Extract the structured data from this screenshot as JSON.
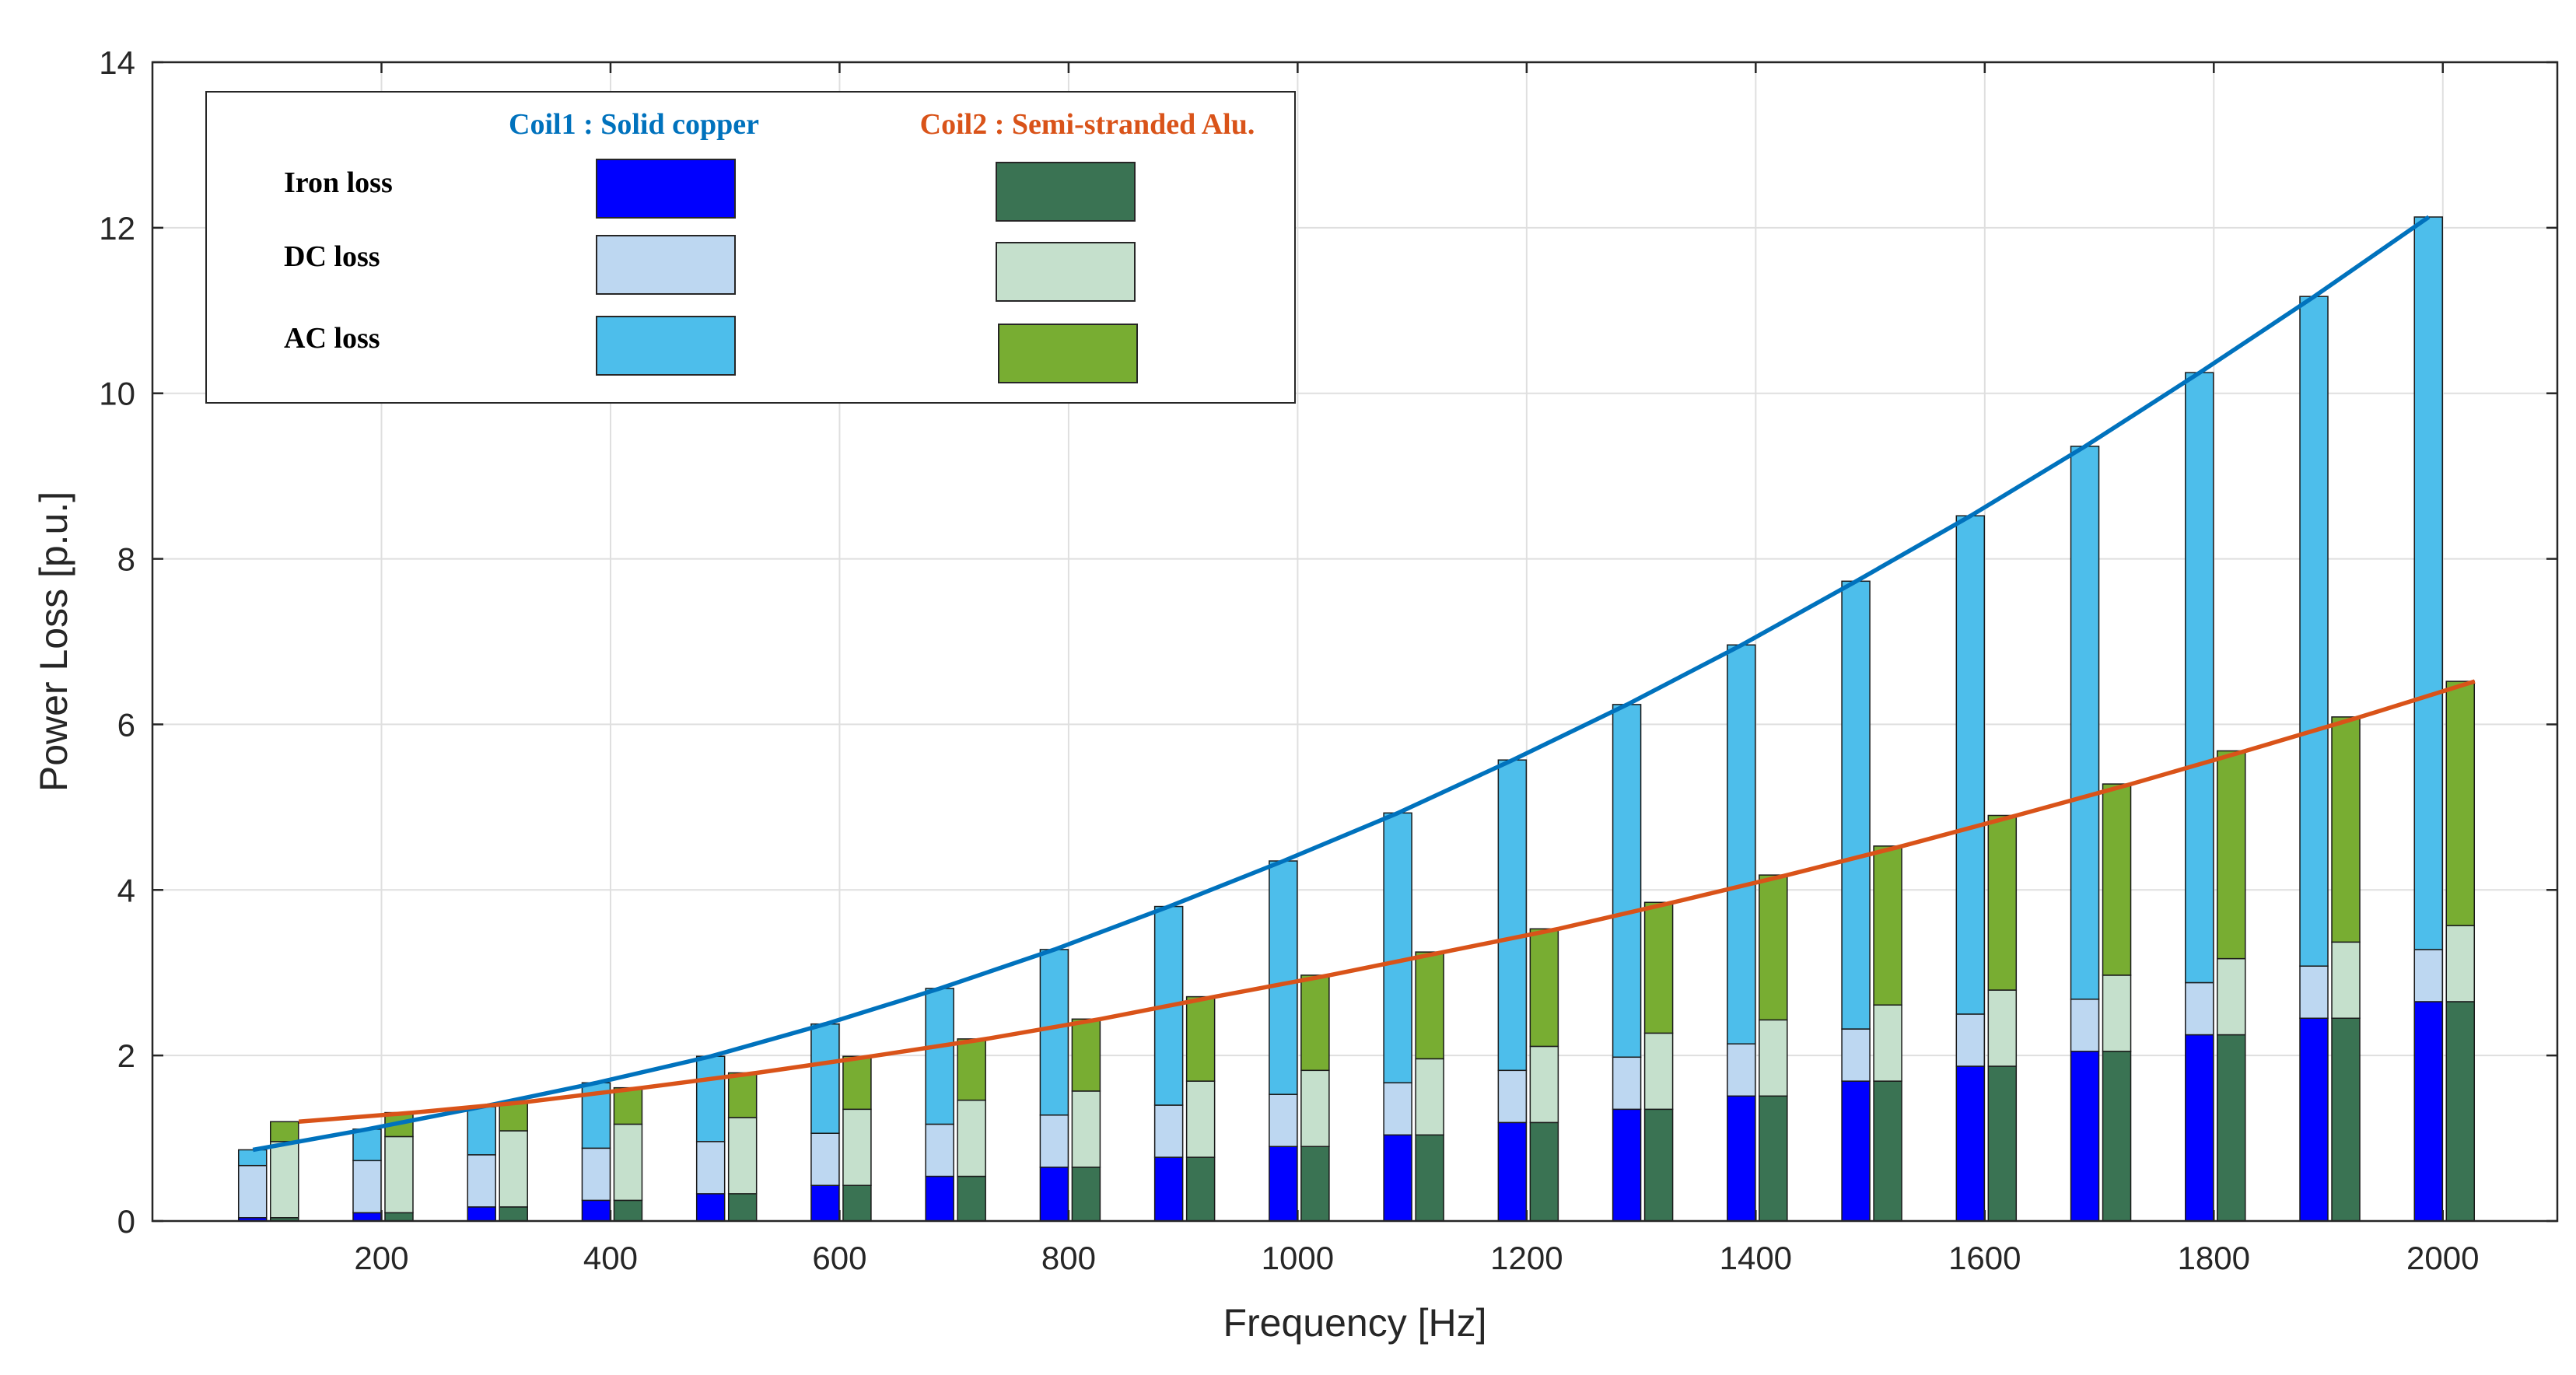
{
  "chart_data": {
    "type": "bar",
    "subtype": "stacked-grouped-bar-with-trend-lines",
    "xlabel": "Frequency [Hz]",
    "ylabel": "Power Loss [p.u.]",
    "xlim": [
      0,
      2100
    ],
    "ylim": [
      0,
      14
    ],
    "xticks": [
      200,
      400,
      600,
      800,
      1000,
      1200,
      1400,
      1600,
      1800,
      2000
    ],
    "yticks": [
      0,
      2,
      4,
      6,
      8,
      10,
      12,
      14
    ],
    "grid": true,
    "legend_position": "top-left",
    "frequencies": [
      100,
      200,
      300,
      400,
      500,
      600,
      700,
      800,
      900,
      1000,
      1100,
      1200,
      1300,
      1400,
      1500,
      1600,
      1700,
      1800,
      1900,
      2000
    ],
    "components": [
      "Iron loss",
      "DC loss",
      "AC loss"
    ],
    "legend": {
      "rows": [
        "Iron loss",
        "DC loss",
        "AC loss"
      ]
    },
    "coils": [
      {
        "name": "Coil1 : Solid copper",
        "line_color": "#0072bd",
        "colors": {
          "iron": "#0000ff",
          "dc": "#bdd7f1",
          "ac": "#4dbeeb"
        },
        "iron": [
          0.04,
          0.1,
          0.17,
          0.25,
          0.33,
          0.43,
          0.54,
          0.65,
          0.77,
          0.9,
          1.04,
          1.19,
          1.35,
          1.51,
          1.69,
          1.87,
          2.05,
          2.25,
          2.45,
          2.65
        ],
        "dc": [
          0.63,
          0.63,
          0.63,
          0.63,
          0.63,
          0.63,
          0.63,
          0.63,
          0.63,
          0.63,
          0.63,
          0.63,
          0.63,
          0.63,
          0.63,
          0.63,
          0.63,
          0.63,
          0.63,
          0.63
        ],
        "total": [
          0.86,
          1.11,
          1.38,
          1.67,
          1.99,
          2.38,
          2.81,
          3.28,
          3.8,
          4.35,
          4.93,
          5.57,
          6.24,
          6.96,
          7.73,
          8.52,
          9.36,
          10.25,
          11.17,
          12.13
        ]
      },
      {
        "name": "Coil2 : Semi-stranded Alu.",
        "line_color": "#d95319",
        "colors": {
          "iron": "#3a7353",
          "dc": "#c5e0cc",
          "ac": "#78ad32"
        },
        "iron": [
          0.04,
          0.1,
          0.17,
          0.25,
          0.33,
          0.43,
          0.54,
          0.65,
          0.77,
          0.9,
          1.04,
          1.19,
          1.35,
          1.51,
          1.69,
          1.87,
          2.05,
          2.25,
          2.45,
          2.65
        ],
        "dc": [
          0.92,
          0.92,
          0.92,
          0.92,
          0.92,
          0.92,
          0.92,
          0.92,
          0.92,
          0.92,
          0.92,
          0.92,
          0.92,
          0.92,
          0.92,
          0.92,
          0.92,
          0.92,
          0.92,
          0.92
        ],
        "total": [
          1.2,
          1.31,
          1.44,
          1.61,
          1.79,
          1.99,
          2.2,
          2.44,
          2.71,
          2.97,
          3.25,
          3.53,
          3.85,
          4.18,
          4.53,
          4.9,
          5.28,
          5.68,
          6.09,
          6.52
        ]
      }
    ]
  }
}
